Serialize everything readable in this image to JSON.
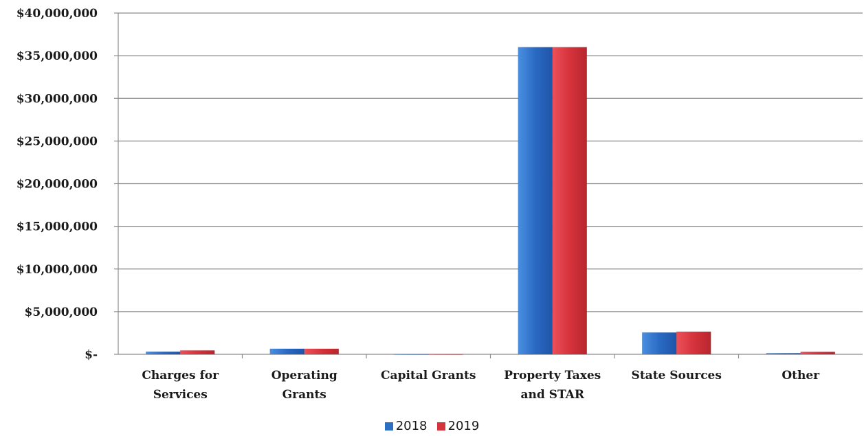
{
  "chart_data": {
    "type": "bar",
    "categories": [
      [
        "Charges for",
        "Services"
      ],
      [
        "Operating",
        "Grants"
      ],
      [
        "Capital Grants"
      ],
      [
        "Property Taxes",
        "and STAR"
      ],
      [
        "State Sources"
      ],
      [
        "Other"
      ]
    ],
    "series": [
      {
        "name": "2018",
        "color": "#2e6fc6",
        "values": [
          300000,
          650000,
          0,
          36000000,
          2550000,
          130000
        ]
      },
      {
        "name": "2019",
        "color": "#d6333c",
        "values": [
          450000,
          650000,
          0,
          36000000,
          2650000,
          280000
        ]
      }
    ],
    "ylim": [
      0,
      40000000
    ],
    "yticks": [
      {
        "value": 0,
        "label": "$-"
      },
      {
        "value": 5000000,
        "label": "$5,000,000"
      },
      {
        "value": 10000000,
        "label": "$10,000,000"
      },
      {
        "value": 15000000,
        "label": "$15,000,000"
      },
      {
        "value": 20000000,
        "label": "$20,000,000"
      },
      {
        "value": 25000000,
        "label": "$25,000,000"
      },
      {
        "value": 30000000,
        "label": "$30,000,000"
      },
      {
        "value": 35000000,
        "label": "$35,000,000"
      },
      {
        "value": 40000000,
        "label": "$40,000,000"
      }
    ],
    "grid": true,
    "legend_position": "bottom-center",
    "title": "",
    "xlabel": "",
    "ylabel": ""
  }
}
